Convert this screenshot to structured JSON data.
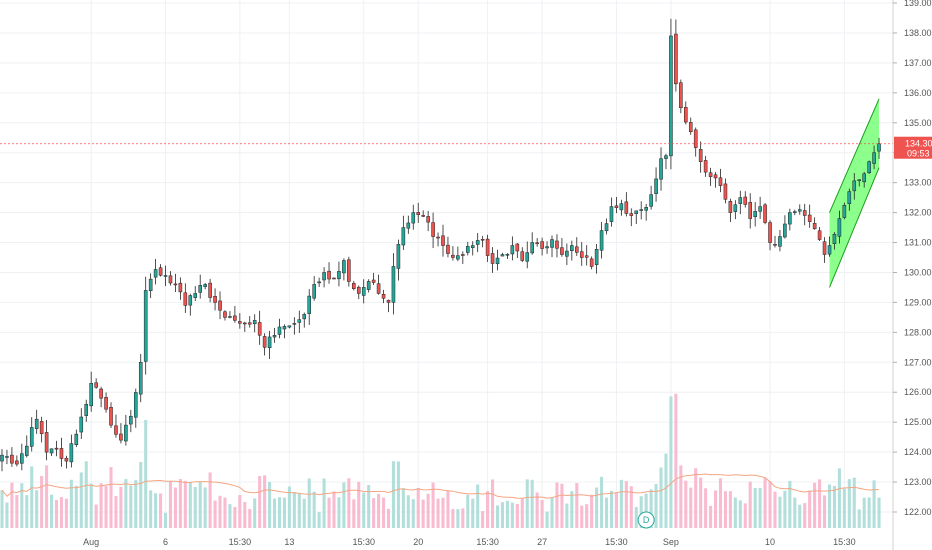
{
  "chart_data": {
    "type": "candlestick",
    "y_axis": {
      "ticks": [
        "139.00",
        "138.00",
        "137.00",
        "136.00",
        "135.00",
        "134.00",
        "133.00",
        "132.00",
        "131.00",
        "130.00",
        "129.00",
        "128.00",
        "127.00",
        "126.00",
        "125.00",
        "124.00",
        "123.00",
        "122.00"
      ],
      "range": [
        121.5,
        139.1
      ],
      "position": "right"
    },
    "x_axis": {
      "ticks": [
        {
          "label": "Aug",
          "bar": 18
        },
        {
          "label": "6",
          "bar": 33
        },
        {
          "label": "15:30",
          "bar": 48
        },
        {
          "label": "13",
          "bar": 58
        },
        {
          "label": "15:30",
          "bar": 73
        },
        {
          "label": "20",
          "bar": 84
        },
        {
          "label": "15:30",
          "bar": 98
        },
        {
          "label": "27",
          "bar": 109
        },
        {
          "label": "15:30",
          "bar": 124
        },
        {
          "label": "Sep",
          "bar": 135
        },
        {
          "label": "10",
          "bar": 155
        },
        {
          "label": "15:30",
          "bar": 170
        }
      ]
    },
    "last_price": {
      "value": 134.3,
      "label": "134.30",
      "countdown": "09:53",
      "color": "#ef5350"
    },
    "dividend_marker": {
      "label": "D",
      "bar": 130
    },
    "colors": {
      "up": "#26a69a",
      "down": "#ef5350",
      "volume_up": "#b2dfdb",
      "volume_down": "#f8bbd0",
      "ma": "#f4a582",
      "channel": "#66ff66"
    },
    "channel": {
      "upper": [
        {
          "bar": 167,
          "price": 132.0
        },
        {
          "bar": 177,
          "price": 135.8
        }
      ],
      "lower": [
        {
          "bar": 167,
          "price": 129.5
        },
        {
          "bar": 177,
          "price": 133.5
        }
      ]
    },
    "anchors": [
      [
        0,
        123.9
      ],
      [
        3,
        123.6
      ],
      [
        5,
        124.2
      ],
      [
        7,
        125.1
      ],
      [
        9,
        124.0
      ],
      [
        11,
        124.1
      ],
      [
        13,
        123.7
      ],
      [
        15,
        124.6
      ],
      [
        17,
        125.6
      ],
      [
        18,
        126.3
      ],
      [
        20,
        125.8
      ],
      [
        22,
        124.9
      ],
      [
        24,
        124.4
      ],
      [
        26,
        125.2
      ],
      [
        28,
        127.0
      ],
      [
        29,
        129.4
      ],
      [
        31,
        130.1
      ],
      [
        33,
        129.9
      ],
      [
        35,
        129.6
      ],
      [
        37,
        128.9
      ],
      [
        39,
        129.3
      ],
      [
        41,
        129.6
      ],
      [
        43,
        129.0
      ],
      [
        45,
        128.5
      ],
      [
        47,
        128.4
      ],
      [
        49,
        128.3
      ],
      [
        51,
        128.4
      ],
      [
        53,
        127.5
      ],
      [
        55,
        127.9
      ],
      [
        57,
        128.2
      ],
      [
        59,
        128.3
      ],
      [
        61,
        128.6
      ],
      [
        63,
        129.6
      ],
      [
        65,
        130.0
      ],
      [
        67,
        129.8
      ],
      [
        69,
        130.4
      ],
      [
        70,
        129.7
      ],
      [
        72,
        129.3
      ],
      [
        74,
        129.7
      ],
      [
        76,
        129.3
      ],
      [
        78,
        129.0
      ],
      [
        79,
        130.2
      ],
      [
        81,
        131.5
      ],
      [
        83,
        132.0
      ],
      [
        85,
        131.9
      ],
      [
        87,
        131.2
      ],
      [
        89,
        130.9
      ],
      [
        91,
        130.5
      ],
      [
        93,
        130.6
      ],
      [
        95,
        130.9
      ],
      [
        97,
        131.1
      ],
      [
        99,
        130.3
      ],
      [
        101,
        130.6
      ],
      [
        103,
        130.9
      ],
      [
        105,
        130.4
      ],
      [
        107,
        131.0
      ],
      [
        109,
        130.8
      ],
      [
        111,
        131.1
      ],
      [
        113,
        130.6
      ],
      [
        115,
        130.9
      ],
      [
        117,
        130.5
      ],
      [
        119,
        130.2
      ],
      [
        121,
        131.4
      ],
      [
        123,
        132.2
      ],
      [
        125,
        132.3
      ],
      [
        127,
        131.9
      ],
      [
        129,
        132.1
      ],
      [
        131,
        132.6
      ],
      [
        133,
        133.8
      ],
      [
        134,
        133.9
      ],
      [
        135,
        137.9
      ],
      [
        136,
        136.3
      ],
      [
        137,
        135.5
      ],
      [
        139,
        134.7
      ],
      [
        141,
        133.7
      ],
      [
        143,
        133.2
      ],
      [
        145,
        132.9
      ],
      [
        147,
        132.0
      ],
      [
        149,
        132.5
      ],
      [
        151,
        131.8
      ],
      [
        153,
        132.2
      ],
      [
        155,
        131.0
      ],
      [
        157,
        131.2
      ],
      [
        159,
        132.0
      ],
      [
        161,
        132.1
      ],
      [
        163,
        131.7
      ],
      [
        165,
        131.1
      ],
      [
        166,
        130.6
      ],
      [
        167,
        130.9
      ],
      [
        169,
        131.8
      ],
      [
        171,
        132.7
      ],
      [
        173,
        133.1
      ],
      [
        175,
        133.7
      ],
      [
        176,
        134.0
      ],
      [
        177,
        134.3
      ]
    ]
  }
}
